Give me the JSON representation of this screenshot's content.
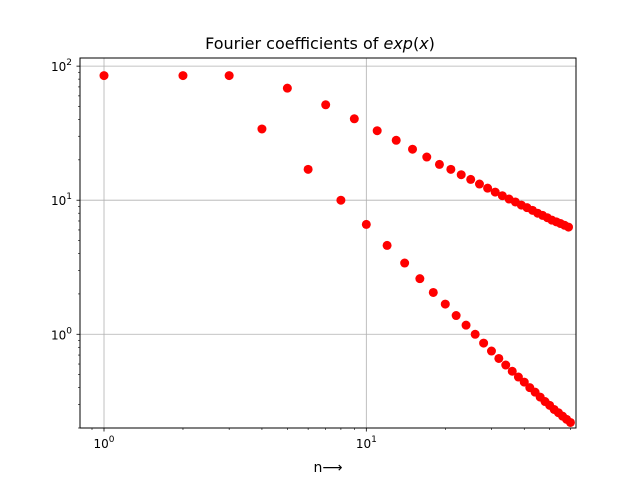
{
  "chart_data": {
    "type": "scatter",
    "title": {
      "prefix": "Fourier coefficients of ",
      "math": "exp",
      "paren_open": "(",
      "arg": "x",
      "paren_close": ")"
    },
    "xlabel": "n⟶",
    "ylabel": "",
    "xscale": "log",
    "yscale": "log",
    "xlim": [
      0.81,
      63
    ],
    "ylim": [
      0.2,
      115
    ],
    "grid": true,
    "xticks": [
      {
        "value": 1,
        "base": "10",
        "exp": "0"
      },
      {
        "value": 10,
        "base": "10",
        "exp": "1"
      }
    ],
    "yticks": [
      {
        "value": 1,
        "base": "10",
        "exp": "0"
      },
      {
        "value": 10,
        "base": "10",
        "exp": "1"
      },
      {
        "value": 100,
        "base": "10",
        "exp": "2"
      }
    ],
    "marker_color": "#ff0000",
    "series": [
      {
        "x": [
          1,
          2,
          3,
          5,
          7,
          9,
          11,
          13,
          15,
          17,
          19,
          21,
          23,
          25,
          27,
          29,
          31,
          33,
          35,
          37,
          39,
          41,
          43,
          45,
          47,
          49,
          51,
          53,
          55,
          57,
          59
        ],
        "y": [
          85,
          85,
          85,
          68.5,
          51.5,
          40.5,
          33,
          28,
          24,
          21,
          18.5,
          17,
          15.5,
          14.3,
          13.2,
          12.3,
          11.5,
          10.8,
          10.2,
          9.7,
          9.2,
          8.8,
          8.4,
          8.0,
          7.7,
          7.4,
          7.1,
          6.9,
          6.7,
          6.5,
          6.3
        ]
      },
      {
        "x": [
          4,
          6,
          8,
          10,
          12,
          14,
          16,
          18,
          20,
          22,
          24,
          26,
          28,
          30,
          32,
          34,
          36,
          38,
          40,
          42,
          44,
          46,
          48,
          50,
          52,
          54,
          56,
          58,
          60
        ],
        "y": [
          34,
          17,
          10,
          6.6,
          4.6,
          3.4,
          2.6,
          2.05,
          1.68,
          1.38,
          1.17,
          1.0,
          0.86,
          0.75,
          0.66,
          0.59,
          0.53,
          0.48,
          0.44,
          0.4,
          0.37,
          0.34,
          0.315,
          0.295,
          0.275,
          0.26,
          0.245,
          0.232,
          0.22
        ]
      }
    ]
  }
}
